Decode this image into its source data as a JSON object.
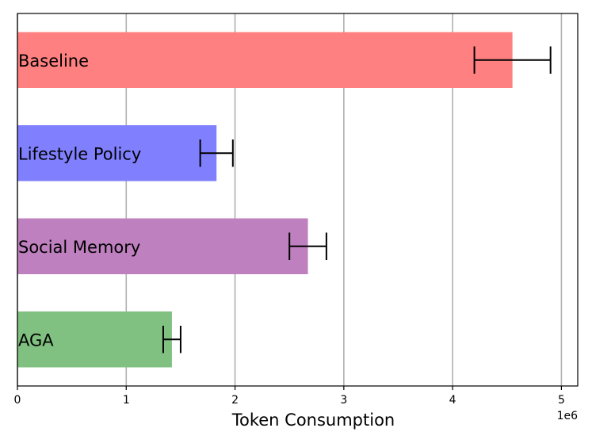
{
  "chart_data": {
    "type": "bar",
    "orientation": "horizontal",
    "categories": [
      "Baseline",
      "Lifestyle Policy",
      "Social Memory",
      "AGA"
    ],
    "values": [
      4550000,
      1830000,
      2670000,
      1420000
    ],
    "errors": [
      350000,
      150000,
      170000,
      80000
    ],
    "colors": [
      "#ff8080",
      "#8080ff",
      "#bf80bf",
      "#80c080"
    ],
    "xlabel": "Token Consumption",
    "ylabel": "",
    "title": "",
    "xlim": [
      0,
      5150000
    ],
    "x_ticks": [
      0,
      1,
      2,
      3,
      4,
      5
    ],
    "x_tick_scale": 1000000,
    "x_offset_label": "1e6",
    "grid": "vertical",
    "legend": "none"
  }
}
